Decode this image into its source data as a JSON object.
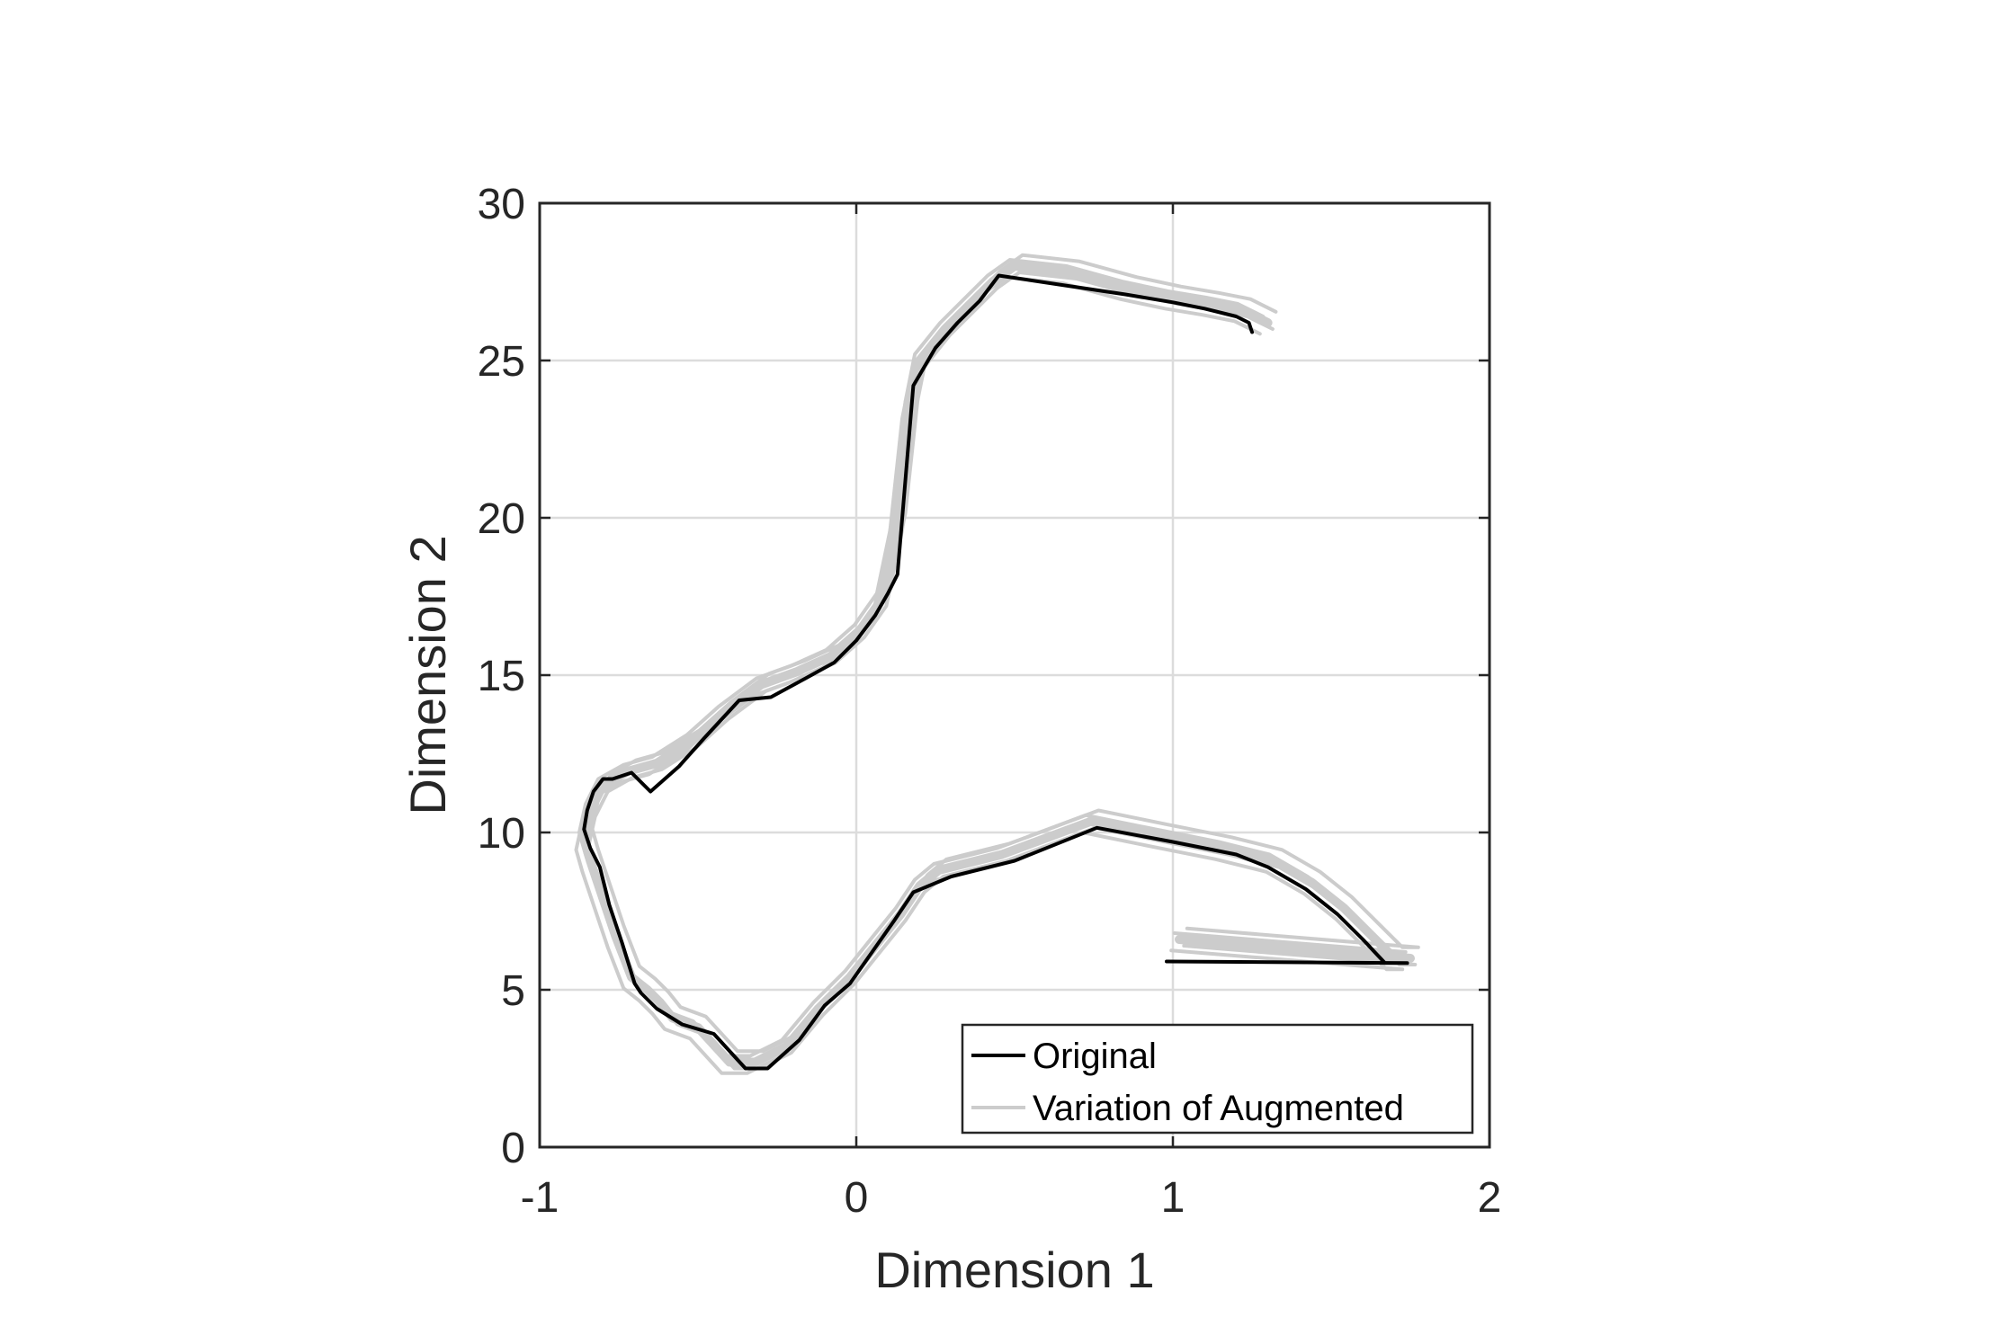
{
  "chart_data": {
    "type": "line",
    "title": "",
    "xlabel": "Dimension 1",
    "ylabel": "Dimension 2",
    "xlim": [
      -1,
      2
    ],
    "ylim": [
      0,
      30
    ],
    "xticks": [
      -1,
      0,
      1,
      2
    ],
    "yticks": [
      0,
      5,
      10,
      15,
      20,
      25,
      30
    ],
    "grid": true,
    "legend_position": "bottom-right",
    "colors": {
      "original": "#000000",
      "augmented": "#cccccc",
      "grid": "#dcdcdc",
      "axes": "#262626"
    },
    "series": [
      {
        "name": "Original",
        "x": [
          0.98,
          1.74,
          1.67,
          1.6,
          1.52,
          1.42,
          1.3,
          1.2,
          1.0,
          0.76,
          0.5,
          0.3,
          0.18,
          0.12,
          0.05,
          -0.02,
          -0.1,
          -0.18,
          -0.28,
          -0.35,
          -0.45,
          -0.55,
          -0.63,
          -0.68,
          -0.7,
          -0.74,
          -0.78,
          -0.81,
          -0.84,
          -0.86,
          -0.85,
          -0.83,
          -0.8,
          -0.77,
          -0.71,
          -0.65,
          -0.56,
          -0.48,
          -0.37,
          -0.27,
          -0.16,
          -0.07,
          0.0,
          0.06,
          0.1,
          0.13,
          0.18,
          0.25,
          0.32,
          0.39,
          0.45,
          0.65,
          0.85,
          1.0,
          1.1,
          1.2,
          1.24,
          1.25
        ],
        "y": [
          5.9,
          5.85,
          5.85,
          6.6,
          7.4,
          8.2,
          8.9,
          9.3,
          9.7,
          10.15,
          9.1,
          8.6,
          8.1,
          7.2,
          6.2,
          5.2,
          4.5,
          3.4,
          2.5,
          2.5,
          3.6,
          3.9,
          4.4,
          4.9,
          5.2,
          6.5,
          7.7,
          8.9,
          9.5,
          10.1,
          10.7,
          11.3,
          11.7,
          11.7,
          11.9,
          11.3,
          12.1,
          13.0,
          14.2,
          14.3,
          14.9,
          15.4,
          16.1,
          16.9,
          17.6,
          18.2,
          24.2,
          25.4,
          26.2,
          26.9,
          27.7,
          27.4,
          27.1,
          26.85,
          26.65,
          26.4,
          26.2,
          25.9
        ]
      },
      {
        "name": "Variation of Augmented",
        "x": [
          1.02,
          1.75,
          1.7,
          1.62,
          1.54,
          1.44,
          1.32,
          1.16,
          0.96,
          0.74,
          0.46,
          0.26,
          0.2,
          0.14,
          0.06,
          -0.02,
          -0.12,
          -0.22,
          -0.32,
          -0.4,
          -0.5,
          -0.58,
          -0.62,
          -0.66,
          -0.71,
          -0.76,
          -0.8,
          -0.84,
          -0.86,
          -0.84,
          -0.8,
          -0.72,
          -0.63,
          -0.52,
          -0.42,
          -0.3,
          -0.19,
          -0.08,
          0.01,
          0.08,
          0.13,
          0.17,
          0.2,
          0.28,
          0.36,
          0.43,
          0.5,
          0.68,
          0.86,
          1.0,
          1.12,
          1.22,
          1.3
        ],
        "y": [
          6.6,
          6.0,
          6.0,
          6.8,
          7.6,
          8.4,
          9.1,
          9.5,
          9.9,
          10.35,
          9.3,
          8.8,
          8.3,
          7.4,
          6.4,
          5.4,
          4.4,
          3.2,
          2.7,
          2.7,
          3.8,
          4.1,
          4.6,
          5.0,
          5.4,
          6.7,
          7.9,
          9.1,
          9.8,
          10.7,
          11.5,
          11.95,
          12.2,
          12.9,
          13.8,
          14.7,
          15.1,
          15.6,
          16.4,
          17.4,
          19.8,
          23.5,
          25.0,
          26.0,
          26.8,
          27.5,
          28.0,
          27.8,
          27.3,
          27.0,
          26.8,
          26.6,
          26.2
        ]
      }
    ]
  }
}
